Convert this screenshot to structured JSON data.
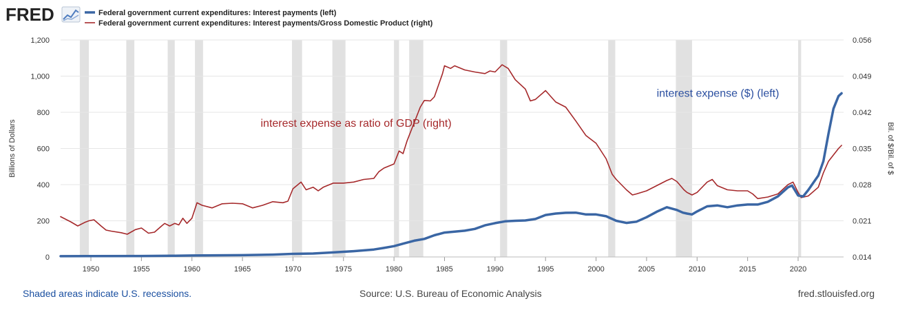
{
  "header": {
    "logo_text": "FRED",
    "logo_icon": "fred-chart-icon",
    "legend": [
      {
        "label": "Federal government current expenditures: Interest payments (left)",
        "color": "#3a66a4"
      },
      {
        "label": "Federal government current expenditures: Interest payments/Gross Domestic Product (right)",
        "color": "#a5282a"
      }
    ]
  },
  "footer": {
    "left": "Shaded areas indicate U.S. recessions.",
    "center": "Source: U.S. Bureau of Economic Analysis",
    "right": "fred.stlouisfed.org"
  },
  "chart_data": {
    "type": "line",
    "x_range": [
      1947,
      2024.5
    ],
    "x_ticks": [
      1950,
      1955,
      1960,
      1965,
      1970,
      1975,
      1980,
      1985,
      1990,
      1995,
      2000,
      2005,
      2010,
      2015,
      2020
    ],
    "left_axis": {
      "label": "Billions of Dollars",
      "range": [
        0,
        1200
      ],
      "ticks": [
        0,
        200,
        400,
        600,
        800,
        1000,
        1200
      ],
      "tick_labels": [
        "0",
        "200",
        "400",
        "600",
        "800",
        "1,000",
        "1,200"
      ]
    },
    "right_axis": {
      "label": "Bil. of $/Bil. of $",
      "range": [
        0.014,
        0.056
      ],
      "ticks": [
        0.014,
        0.021,
        0.028,
        0.035,
        0.042,
        0.049,
        0.056
      ],
      "tick_labels": [
        "0.014",
        "0.021",
        "0.028",
        "0.035",
        "0.042",
        "0.049",
        "0.056"
      ]
    },
    "grid": true,
    "recessions": [
      [
        1948.9,
        1949.8
      ],
      [
        1953.5,
        1954.3
      ],
      [
        1957.6,
        1958.3
      ],
      [
        1960.3,
        1961.1
      ],
      [
        1969.9,
        1970.9
      ],
      [
        1973.9,
        1975.2
      ],
      [
        1980.0,
        1980.5
      ],
      [
        1981.5,
        1982.9
      ],
      [
        1990.5,
        1991.2
      ],
      [
        2001.2,
        2001.9
      ],
      [
        2007.9,
        2009.5
      ],
      [
        2020.0,
        2020.3
      ]
    ],
    "annotations": [
      {
        "text": "interest expense as ratio of GDP (right)",
        "x": 1966.8,
        "axis": "left",
        "y": 720,
        "color": "#a5282a"
      },
      {
        "text": "interest expense ($) (left)",
        "x": 2006.0,
        "axis": "left",
        "y": 885,
        "color": "#2b4fa0"
      }
    ],
    "series": [
      {
        "name": "Federal government current expenditures: Interest payments (left)",
        "axis": "left",
        "color": "#3a66a4",
        "width": 3.5,
        "points": [
          [
            1947,
            4
          ],
          [
            1950,
            4.5
          ],
          [
            1955,
            5.5
          ],
          [
            1958,
            6.5
          ],
          [
            1960,
            8
          ],
          [
            1965,
            10
          ],
          [
            1968,
            13
          ],
          [
            1970,
            17
          ],
          [
            1972,
            19
          ],
          [
            1974,
            25
          ],
          [
            1976,
            32
          ],
          [
            1978,
            41
          ],
          [
            1979,
            50
          ],
          [
            1980,
            60
          ],
          [
            1981,
            75
          ],
          [
            1982,
            90
          ],
          [
            1983,
            100
          ],
          [
            1984,
            120
          ],
          [
            1985,
            135
          ],
          [
            1986,
            140
          ],
          [
            1987,
            145
          ],
          [
            1988,
            155
          ],
          [
            1989,
            175
          ],
          [
            1990,
            187
          ],
          [
            1991,
            197
          ],
          [
            1992,
            200
          ],
          [
            1993,
            202
          ],
          [
            1994,
            210
          ],
          [
            1995,
            232
          ],
          [
            1996,
            240
          ],
          [
            1997,
            244
          ],
          [
            1998,
            245
          ],
          [
            1999,
            235
          ],
          [
            2000,
            235
          ],
          [
            2001,
            225
          ],
          [
            2002,
            200
          ],
          [
            2003,
            188
          ],
          [
            2004,
            195
          ],
          [
            2005,
            220
          ],
          [
            2006,
            250
          ],
          [
            2007,
            275
          ],
          [
            2008,
            260
          ],
          [
            2008.6,
            245
          ],
          [
            2009,
            240
          ],
          [
            2009.5,
            235
          ],
          [
            2010,
            252
          ],
          [
            2011,
            280
          ],
          [
            2012,
            285
          ],
          [
            2013,
            275
          ],
          [
            2014,
            285
          ],
          [
            2015,
            290
          ],
          [
            2016,
            290
          ],
          [
            2017,
            305
          ],
          [
            2018,
            335
          ],
          [
            2019,
            385
          ],
          [
            2019.4,
            395
          ],
          [
            2020,
            340
          ],
          [
            2020.5,
            335
          ],
          [
            2021,
            370
          ],
          [
            2022,
            450
          ],
          [
            2022.5,
            530
          ],
          [
            2023,
            680
          ],
          [
            2023.5,
            820
          ],
          [
            2024,
            890
          ],
          [
            2024.3,
            905
          ]
        ]
      },
      {
        "name": "Federal government current expenditures: Interest payments/Gross Domestic Product (right)",
        "axis": "right",
        "color": "#a5282a",
        "width": 1.6,
        "points": [
          [
            1947,
            0.0218
          ],
          [
            1948,
            0.0208
          ],
          [
            1948.7,
            0.02
          ],
          [
            1949.4,
            0.0207
          ],
          [
            1949.8,
            0.021
          ],
          [
            1950.3,
            0.0212
          ],
          [
            1951,
            0.02
          ],
          [
            1951.5,
            0.0192
          ],
          [
            1952,
            0.019
          ],
          [
            1953,
            0.0187
          ],
          [
            1953.6,
            0.0184
          ],
          [
            1954.4,
            0.0193
          ],
          [
            1955,
            0.0196
          ],
          [
            1955.7,
            0.0186
          ],
          [
            1956.3,
            0.0188
          ],
          [
            1957,
            0.02
          ],
          [
            1957.3,
            0.0205
          ],
          [
            1957.8,
            0.02
          ],
          [
            1958.3,
            0.0205
          ],
          [
            1958.7,
            0.0202
          ],
          [
            1959.1,
            0.0215
          ],
          [
            1959.5,
            0.0205
          ],
          [
            1960.0,
            0.0215
          ],
          [
            1960.5,
            0.0245
          ],
          [
            1961,
            0.024
          ],
          [
            1962,
            0.0235
          ],
          [
            1963,
            0.0243
          ],
          [
            1964,
            0.0244
          ],
          [
            1965,
            0.0243
          ],
          [
            1966,
            0.0235
          ],
          [
            1967,
            0.024
          ],
          [
            1968,
            0.0247
          ],
          [
            1969,
            0.0245
          ],
          [
            1969.5,
            0.0248
          ],
          [
            1970,
            0.0272
          ],
          [
            1970.8,
            0.0285
          ],
          [
            1971.3,
            0.027
          ],
          [
            1972,
            0.0275
          ],
          [
            1972.5,
            0.0268
          ],
          [
            1973,
            0.0275
          ],
          [
            1974,
            0.0283
          ],
          [
            1975,
            0.0283
          ],
          [
            1976,
            0.0285
          ],
          [
            1977,
            0.029
          ],
          [
            1978,
            0.0292
          ],
          [
            1978.5,
            0.0305
          ],
          [
            1979,
            0.0312
          ],
          [
            1980,
            0.032
          ],
          [
            1980.5,
            0.0345
          ],
          [
            1980.9,
            0.034
          ],
          [
            1981.3,
            0.0365
          ],
          [
            1982,
            0.04
          ],
          [
            1982.6,
            0.043
          ],
          [
            1983,
            0.0443
          ],
          [
            1983.6,
            0.0442
          ],
          [
            1984,
            0.045
          ],
          [
            1984.8,
            0.0495
          ],
          [
            1985,
            0.051
          ],
          [
            1985.6,
            0.0505
          ],
          [
            1986,
            0.051
          ],
          [
            1987,
            0.0502
          ],
          [
            1988,
            0.0498
          ],
          [
            1989,
            0.0495
          ],
          [
            1989.5,
            0.05
          ],
          [
            1990,
            0.0498
          ],
          [
            1990.7,
            0.0512
          ],
          [
            1991.3,
            0.0505
          ],
          [
            1992,
            0.0483
          ],
          [
            1993,
            0.0465
          ],
          [
            1993.5,
            0.0442
          ],
          [
            1994,
            0.0445
          ],
          [
            1995,
            0.0462
          ],
          [
            1996,
            0.044
          ],
          [
            1997,
            0.043
          ],
          [
            1998,
            0.0403
          ],
          [
            1999,
            0.0375
          ],
          [
            2000,
            0.036
          ],
          [
            2001,
            0.033
          ],
          [
            2001.6,
            0.03
          ],
          [
            2002,
            0.029
          ],
          [
            2003,
            0.027
          ],
          [
            2003.6,
            0.026
          ],
          [
            2004,
            0.0262
          ],
          [
            2005,
            0.0268
          ],
          [
            2006,
            0.0278
          ],
          [
            2007,
            0.0288
          ],
          [
            2007.5,
            0.0292
          ],
          [
            2008,
            0.0286
          ],
          [
            2008.7,
            0.027
          ],
          [
            2009,
            0.0265
          ],
          [
            2009.5,
            0.026
          ],
          [
            2010,
            0.0265
          ],
          [
            2011,
            0.0285
          ],
          [
            2011.5,
            0.029
          ],
          [
            2012,
            0.0278
          ],
          [
            2013,
            0.027
          ],
          [
            2014,
            0.0268
          ],
          [
            2015,
            0.0268
          ],
          [
            2015.5,
            0.0262
          ],
          [
            2016,
            0.0253
          ],
          [
            2017,
            0.0256
          ],
          [
            2018,
            0.0262
          ],
          [
            2019,
            0.028
          ],
          [
            2019.5,
            0.0285
          ],
          [
            2020,
            0.0265
          ],
          [
            2020.3,
            0.0255
          ],
          [
            2021,
            0.0258
          ],
          [
            2022,
            0.0275
          ],
          [
            2022.5,
            0.0303
          ],
          [
            2023,
            0.0325
          ],
          [
            2024,
            0.035
          ],
          [
            2024.3,
            0.0356
          ]
        ]
      }
    ]
  }
}
